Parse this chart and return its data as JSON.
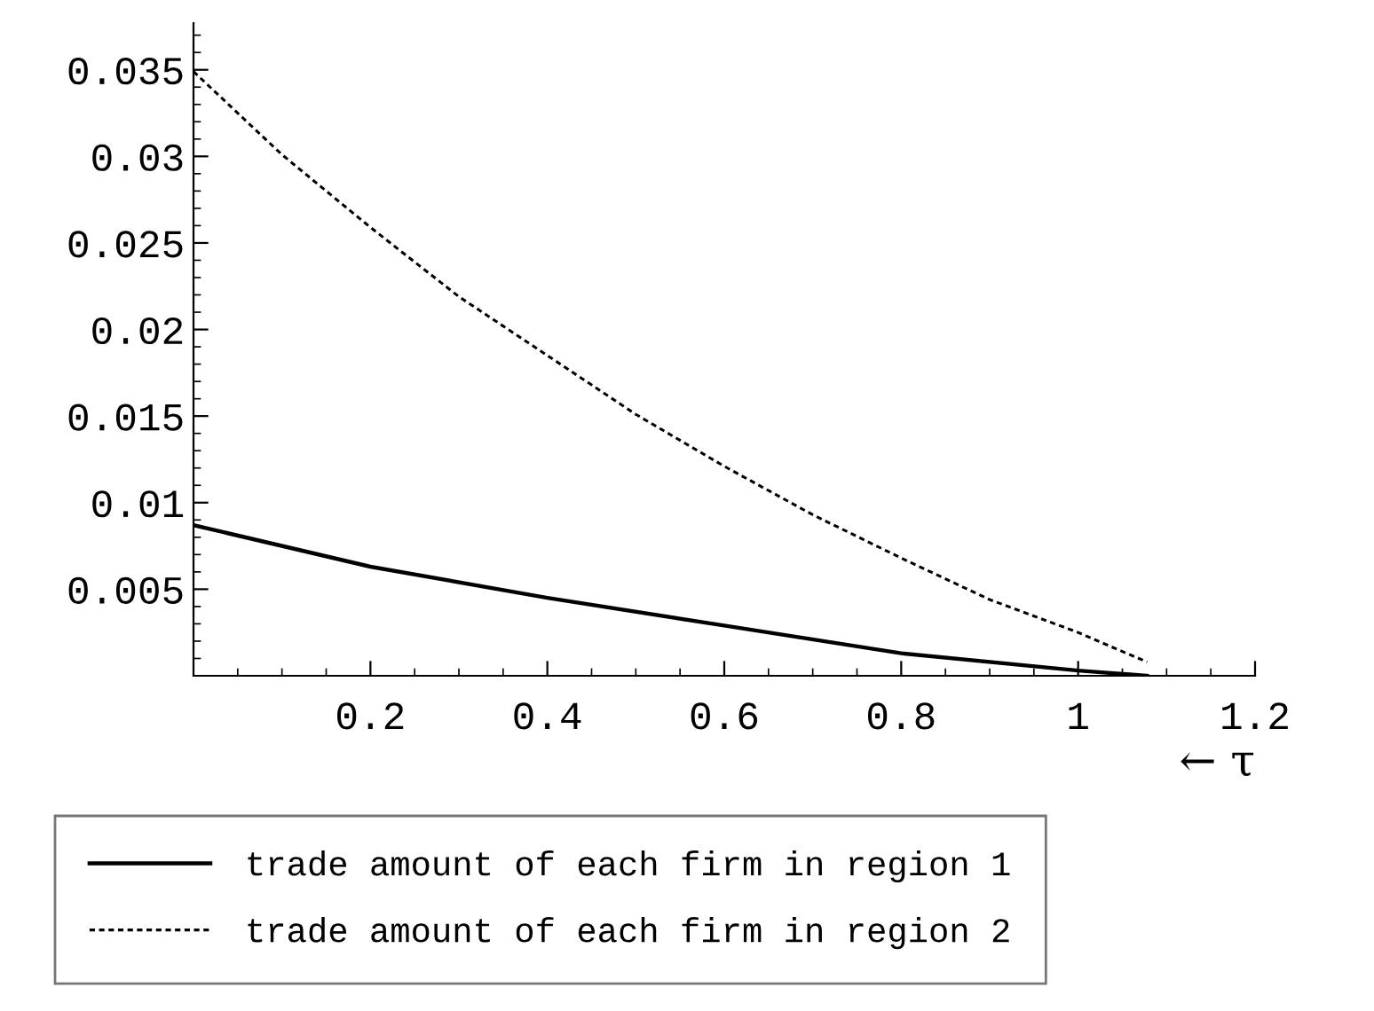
{
  "chart_data": {
    "type": "line",
    "xlabel": "← τ",
    "series": [
      {
        "name": "trade amount of each firm in region 1",
        "color": "#000000",
        "line_style": "solid",
        "x": [
          0,
          0.2,
          0.4,
          0.6,
          0.8,
          1.0,
          1.078
        ],
        "values": [
          0.0087,
          0.0063,
          0.0045,
          0.0029,
          0.0013,
          0.0003,
          0.0
        ]
      },
      {
        "name": "trade amount of each firm in region 2",
        "color": "#000000",
        "line_style": "dashed",
        "x": [
          0,
          0.1,
          0.2,
          0.3,
          0.4,
          0.5,
          0.6,
          0.7,
          0.8,
          0.9,
          1.0,
          1.05,
          1.078
        ],
        "values": [
          0.0349,
          0.0301,
          0.0259,
          0.0219,
          0.0185,
          0.0151,
          0.0121,
          0.0093,
          0.0068,
          0.0044,
          0.0025,
          0.0014,
          0.0008
        ]
      }
    ],
    "xlim": [
      0,
      1.2
    ],
    "ylim": [
      0,
      0.0377
    ],
    "xticks": [
      0.2,
      0.4,
      0.6,
      0.8,
      {
        "value": 1,
        "label": "1"
      },
      1.2
    ],
    "yticks": [
      0.005,
      0.01,
      0.015,
      0.02,
      0.025,
      0.03,
      0.035
    ],
    "grid": false,
    "legend": "bottom",
    "marker": "none"
  }
}
